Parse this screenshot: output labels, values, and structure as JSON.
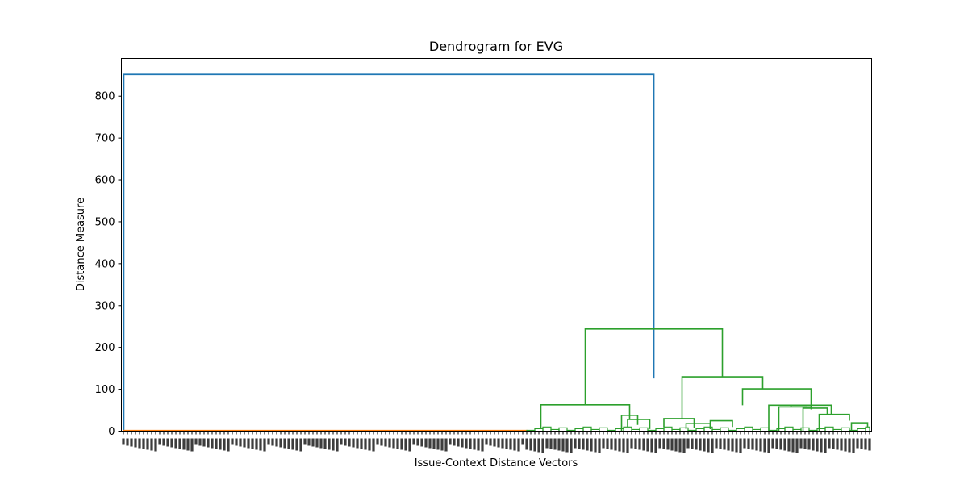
{
  "chart_data": {
    "type": "dendrogram",
    "title": "Dendrogram for EVG",
    "xlabel": "Issue-Context Distance Vectors",
    "ylabel": "Distance Measure",
    "ylim": [
      0,
      890
    ],
    "y_ticks": [
      0,
      100,
      200,
      300,
      400,
      500,
      600,
      700,
      800
    ],
    "leaf_count": 186,
    "colors": {
      "root": "#1f77b4",
      "cluster_left": "#ff7f0e",
      "cluster_right": "#2ca02c",
      "axes": "#000000"
    },
    "links": [
      {
        "id": "root",
        "color": "root",
        "x1": 0.08,
        "x2": 131.5,
        "h1": 2,
        "h2": 126,
        "height": 852
      },
      {
        "id": "right-top",
        "color": "cluster_right",
        "x1": 114.5,
        "x2": 148.5,
        "h1": 63,
        "h2": 130,
        "height": 244
      },
      {
        "id": "right-mid",
        "color": "cluster_right",
        "x1": 138.5,
        "x2": 158.5,
        "h1": 30,
        "h2": 101,
        "height": 130
      },
      {
        "id": "right-a",
        "color": "cluster_right",
        "x1": 153.5,
        "x2": 170.5,
        "h1": 62,
        "h2": 52,
        "height": 101
      },
      {
        "id": "right-b",
        "color": "cluster_right",
        "x1": 160,
        "x2": 169.5,
        "h1": 0,
        "h2": 62,
        "height": 62
      },
      {
        "id": "right-c",
        "color": "cluster_right",
        "x1": 165.5,
        "x2": 175.5,
        "h1": 58,
        "h2": 40,
        "height": 62
      },
      {
        "id": "right-d",
        "color": "cluster_right",
        "x1": 162.5,
        "x2": 170.5,
        "h1": 0,
        "h2": 55,
        "height": 58
      },
      {
        "id": "right-e",
        "color": "cluster_right",
        "x1": 168.5,
        "x2": 174.5,
        "h1": 0,
        "h2": 40,
        "height": 55
      },
      {
        "id": "right-f",
        "color": "cluster_right",
        "x1": 172.5,
        "x2": 180,
        "h1": 0,
        "h2": 25,
        "height": 40
      },
      {
        "id": "right-g",
        "color": "cluster_right",
        "x1": 180.5,
        "x2": 184.5,
        "h1": 0,
        "h2": 10,
        "height": 20
      },
      {
        "id": "left-a",
        "color": "cluster_right",
        "x1": 103.5,
        "x2": 125.5,
        "h1": 5,
        "h2": 28,
        "height": 63
      },
      {
        "id": "left-b",
        "color": "cluster_right",
        "x1": 123.5,
        "x2": 127.5,
        "h1": 0,
        "h2": 15,
        "height": 38
      },
      {
        "id": "left-c",
        "color": "cluster_right",
        "x1": 125,
        "x2": 130.5,
        "h1": 10,
        "h2": 5,
        "height": 28
      },
      {
        "id": "mid-a",
        "color": "cluster_right",
        "x1": 134,
        "x2": 141.5,
        "h1": 10,
        "h2": 8,
        "height": 30
      },
      {
        "id": "mid-b",
        "color": "cluster_right",
        "x1": 139.5,
        "x2": 145.5,
        "h1": 5,
        "h2": 5,
        "height": 18
      },
      {
        "id": "mid-c",
        "color": "cluster_right",
        "x1": 145.5,
        "x2": 151,
        "h1": 5,
        "h2": 10,
        "height": 25
      },
      {
        "id": "orange-root",
        "color": "cluster_left",
        "x1": 0.1,
        "x2": 100,
        "h1": 0,
        "h2": 0,
        "height": 1.5
      }
    ]
  }
}
